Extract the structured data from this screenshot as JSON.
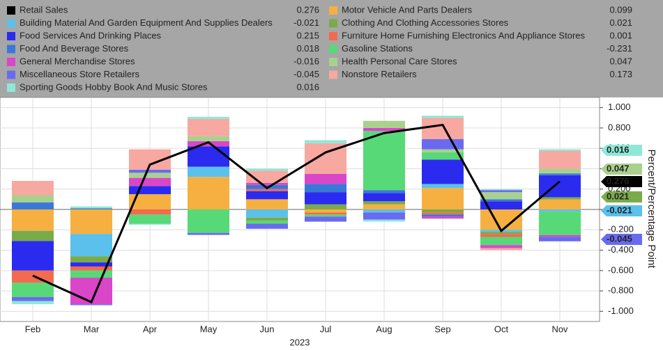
{
  "chart_data": {
    "type": "bar",
    "stacked": true,
    "categories": [
      "Feb",
      "Mar",
      "Apr",
      "May",
      "Jun",
      "Jul",
      "Aug",
      "Sep",
      "Oct",
      "Nov"
    ],
    "x_label": "2023",
    "y_label": "Percent/Percentage Point",
    "ylim": [
      -1.1,
      1.1
    ],
    "yticks": [
      {
        "value": 1,
        "label": "1.000"
      },
      {
        "value": 0.8,
        "label": "0.800"
      },
      {
        "value": 0.6,
        "label": "0.600"
      },
      {
        "value": 0.4,
        "label": "0.400"
      },
      {
        "value": 0.2,
        "label": "0.200"
      },
      {
        "value": 0,
        "label": "0.000"
      },
      {
        "value": -0.2,
        "label": "-0.200"
      },
      {
        "value": -0.4,
        "label": "-0.400"
      },
      {
        "value": -0.6,
        "label": "-0.600"
      },
      {
        "value": -0.8,
        "label": "-0.800"
      },
      {
        "value": -1,
        "label": "-1.000"
      }
    ],
    "grid": true,
    "series": [
      {
        "name": "Retail Sales",
        "type": "line",
        "color": "#000000",
        "values": [
          -0.65,
          -0.91,
          0.44,
          0.66,
          0.21,
          0.56,
          0.75,
          0.83,
          -0.21,
          0.276
        ]
      },
      {
        "name": "Building Material And Garden Equipment And Supplies Dealers",
        "color": "#5bc0eb",
        "values": [
          0,
          -0.22,
          0,
          0.1,
          -0.08,
          0,
          -0.03,
          0.04,
          -0.02,
          -0.021
        ]
      },
      {
        "name": "Food Services And Drinking Places",
        "color": "#2b2bef",
        "values": [
          -0.29,
          -0.04,
          0.08,
          0.2,
          0.08,
          0.12,
          0.08,
          0.24,
          0.08,
          0.215
        ]
      },
      {
        "name": "Food And Beverage Stores",
        "color": "#3a78d8",
        "values": [
          0.07,
          0.01,
          0,
          0,
          0.04,
          0.08,
          0.03,
          -0.02,
          0.02,
          0.018
        ]
      },
      {
        "name": "General Merchandise Stores",
        "color": "#d946c8",
        "values": [
          0,
          -0.26,
          0.08,
          0.05,
          0.02,
          0.1,
          0.03,
          -0.02,
          -0.03,
          -0.016
        ]
      },
      {
        "name": "Miscellaneous Store Retailers",
        "color": "#6a6af0",
        "values": [
          -0.04,
          -0.01,
          0.03,
          -0.02,
          -0.05,
          -0.05,
          -0.07,
          0.1,
          0.02,
          -0.045
        ]
      },
      {
        "name": "Sporting Goods Hobby Book And Music Stores",
        "color": "#8ee8d8",
        "values": [
          -0.03,
          0.02,
          -0.01,
          0.02,
          0.02,
          0.03,
          -0.02,
          0.02,
          0.01,
          0.016
        ]
      },
      {
        "name": "Motor Vehicle And Parts Dealers",
        "color": "#f5b041",
        "values": [
          -0.21,
          -0.24,
          0.15,
          0.32,
          0.1,
          -0.03,
          0.05,
          0.21,
          -0.2,
          0.099
        ]
      },
      {
        "name": "Clothing And Clothing Accessories Stores",
        "color": "#7aab4a",
        "values": [
          -0.1,
          -0.06,
          0,
          0,
          -0.03,
          0.05,
          0.03,
          -0.03,
          -0.02,
          0.021
        ]
      },
      {
        "name": "Furniture Home Furnishing Electronics And Appliance Stores",
        "color": "#f26a4f",
        "values": [
          -0.12,
          -0.04,
          -0.05,
          0,
          0.02,
          -0.02,
          0,
          -0.02,
          -0.03,
          0.001
        ]
      },
      {
        "name": "Gasoline Stations",
        "color": "#57d977",
        "values": [
          -0.14,
          -0.07,
          -0.09,
          -0.23,
          -0.03,
          -0.02,
          0.58,
          0.07,
          -0.08,
          -0.231
        ]
      },
      {
        "name": "Health Personal Care Stores",
        "color": "#a9d18e",
        "values": [
          0.07,
          0,
          0.05,
          0.05,
          0,
          0,
          0.07,
          0.03,
          0.07,
          0.047
        ]
      },
      {
        "name": "Nonstore Retailers",
        "color": "#f7a8a0",
        "values": [
          0.14,
          0,
          0.2,
          0.17,
          0.12,
          0.3,
          0,
          0.21,
          -0.02,
          0.173
        ]
      }
    ]
  }
}
